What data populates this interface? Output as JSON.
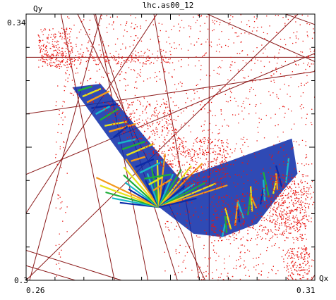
{
  "chart_data": {
    "type": "scatter",
    "title": "lhc.as00_12",
    "xlabel": "Qx",
    "ylabel": "Qy",
    "xlim": [
      0.26,
      0.31
    ],
    "ylim": [
      0.3,
      0.34
    ],
    "x_tick_labels": [
      "0.26",
      "0.31"
    ],
    "y_tick_labels": [
      "0.34",
      "0.3"
    ],
    "grid": false,
    "colors": {
      "frame": "#000000",
      "resonance_lines": "#8b1a1a",
      "scatter_red": "#e8140f",
      "scatter_orange": "#f39a1c",
      "scatter_yellow": "#e6e21a",
      "scatter_green": "#1fae3a",
      "scatter_cyan": "#18b8c8",
      "scatter_blue": "#0b2aa8"
    },
    "resonance_lines": [
      {
        "x1": 0.26,
        "y1": 0.3,
        "x2": 0.3078,
        "y2": 0.3406
      },
      {
        "x1": 0.26,
        "y1": 0.3159,
        "x2": 0.3133,
        "y2": 0.3353
      },
      {
        "x1": 0.26,
        "y1": 0.325,
        "x2": 0.3133,
        "y2": 0.3318
      },
      {
        "x1": 0.26,
        "y1": 0.3335,
        "x2": 0.3133,
        "y2": 0.3335
      },
      {
        "x1": 0.26,
        "y1": 0.3101,
        "x2": 0.2831,
        "y2": 0.3406
      },
      {
        "x1": 0.2753,
        "y1": 0.3,
        "x2": 0.2659,
        "y2": 0.3406
      },
      {
        "x1": 0.2811,
        "y1": 0.3,
        "x2": 0.2719,
        "y2": 0.3406
      },
      {
        "x1": 0.2862,
        "y1": 0.3,
        "x2": 0.2715,
        "y2": 0.3406
      },
      {
        "x1": 0.291,
        "y1": 0.3,
        "x2": 0.2686,
        "y2": 0.3406
      },
      {
        "x1": 0.29,
        "y1": 0.3,
        "x2": 0.282,
        "y2": 0.3406
      },
      {
        "x1": 0.2606,
        "y1": 0.3,
        "x2": 0.2732,
        "y2": 0.3406
      },
      {
        "x1": 0.26,
        "y1": 0.3022,
        "x2": 0.2685,
        "y2": 0.3
      },
      {
        "x1": 0.26,
        "y1": 0.3045,
        "x2": 0.2765,
        "y2": 0.3
      },
      {
        "x1": 0.2917,
        "y1": 0.3,
        "x2": 0.2917,
        "y2": 0.3406
      },
      {
        "x1": 0.2898,
        "y1": 0.3406,
        "x2": 0.3133,
        "y2": 0.3316
      },
      {
        "x1": 0.303,
        "y1": 0.3406,
        "x2": 0.3133,
        "y2": 0.3374
      },
      {
        "x1": 0.3094,
        "y1": 0.3,
        "x2": 0.3133,
        "y2": 0.3052
      }
    ],
    "scatter_regions": [
      {
        "color": "red",
        "count": 1800,
        "xr": [
          0.265,
          0.313
        ],
        "yr": [
          0.3,
          0.34
        ]
      },
      {
        "color": "red",
        "count": 500,
        "xr": [
          0.273,
          0.286
        ],
        "yr": [
          0.317,
          0.327
        ]
      },
      {
        "color": "red",
        "count": 350,
        "xr": [
          0.286,
          0.295
        ],
        "yr": [
          0.314,
          0.3215
        ]
      },
      {
        "color": "red",
        "count": 400,
        "xr": [
          0.292,
          0.308
        ],
        "yr": [
          0.306,
          0.313
        ]
      },
      {
        "color": "red",
        "count": 300,
        "xr": [
          0.302,
          0.309
        ],
        "yr": [
          0.308,
          0.316
        ]
      },
      {
        "color": "red",
        "count": 250,
        "xr": [
          0.262,
          0.268
        ],
        "yr": [
          0.332,
          0.338
        ]
      },
      {
        "color": "red",
        "count": 150,
        "xr": [
          0.265,
          0.285
        ],
        "yr": [
          0.3325,
          0.334
        ]
      },
      {
        "color": "red",
        "count": 150,
        "xr": [
          0.305,
          0.309
        ],
        "yr": [
          0.3,
          0.305
        ]
      }
    ],
    "footprint": {
      "vertices": [
        {
          "x": 0.268,
          "y": 0.329
        },
        {
          "x": 0.283,
          "y": 0.311
        },
        {
          "x": 0.289,
          "y": 0.307
        },
        {
          "x": 0.294,
          "y": 0.3065
        },
        {
          "x": 0.3,
          "y": 0.3085
        },
        {
          "x": 0.304,
          "y": 0.313
        },
        {
          "x": 0.307,
          "y": 0.316
        }
      ],
      "fan_center": {
        "x": 0.283,
        "y": 0.311
      }
    }
  }
}
